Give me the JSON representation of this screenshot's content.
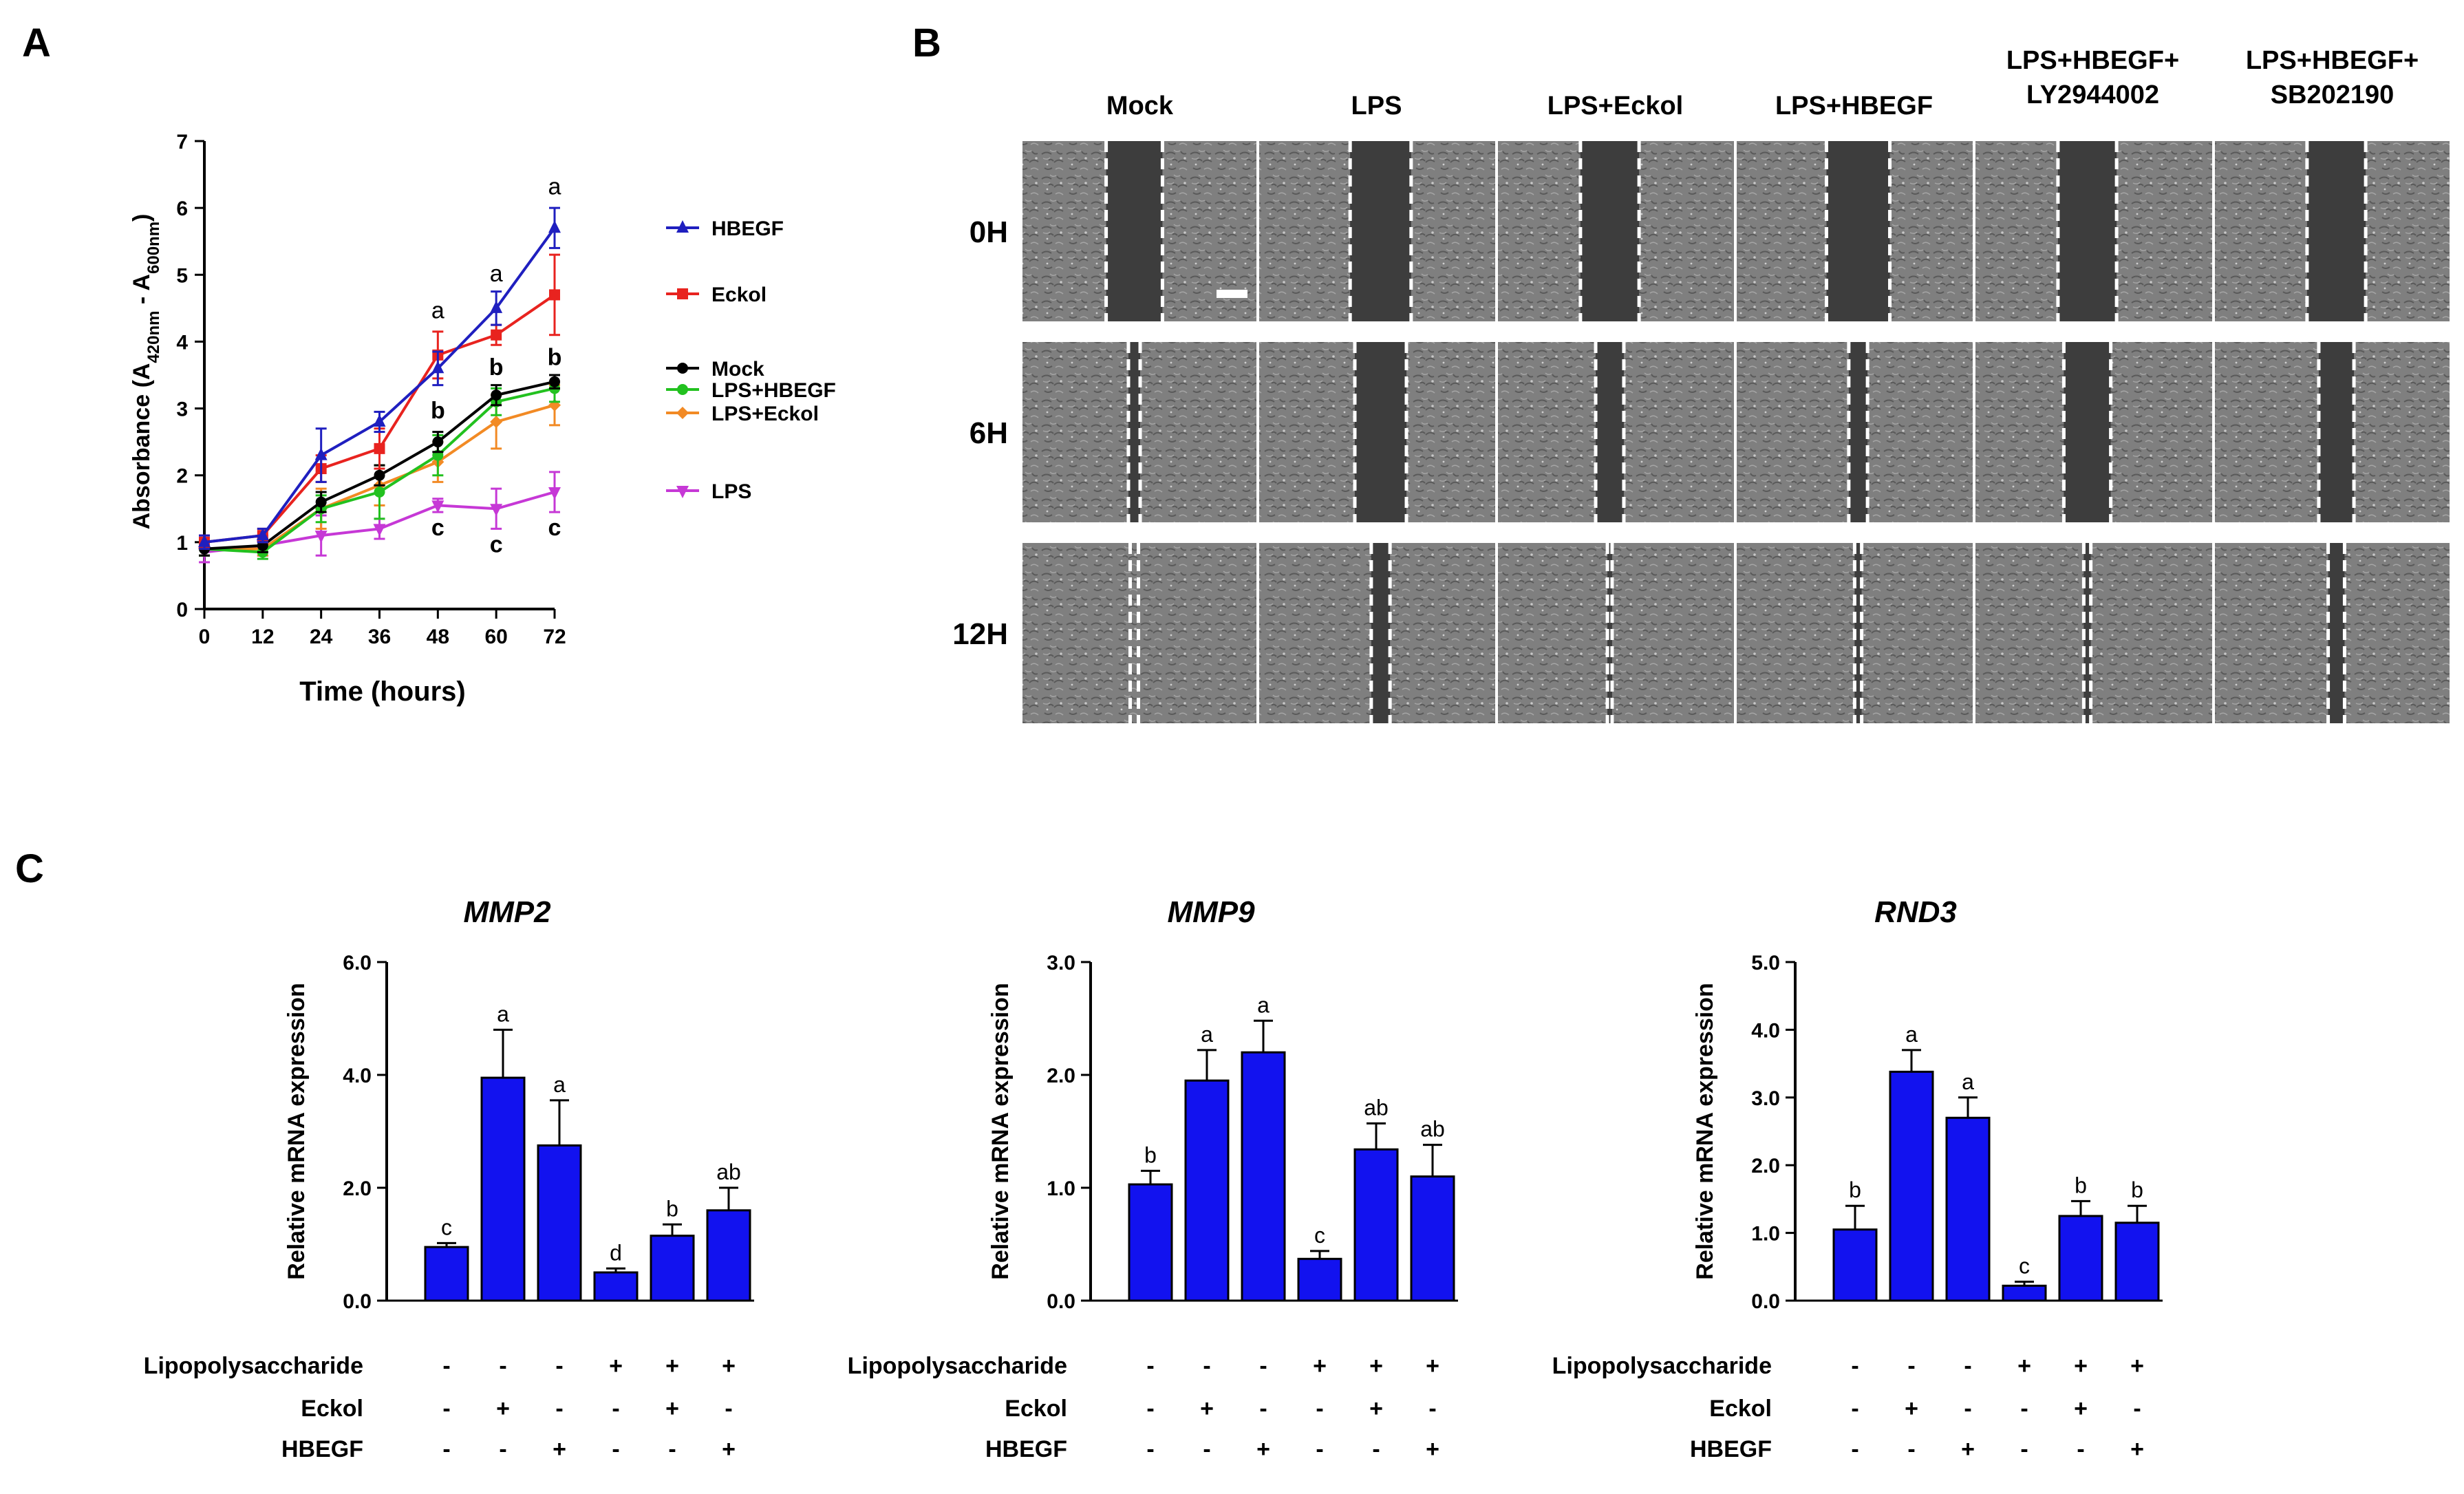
{
  "panel_labels": [
    "A",
    "B",
    "C"
  ],
  "colors": {
    "HBEGF": "#1f1fbf",
    "Eckol": "#e8231f",
    "Mock": "#000000",
    "LPS+HBEGF": "#22c11f",
    "LPS+Eckol": "#f28a24",
    "LPS": "#c638d6",
    "bar": "#1212ef"
  },
  "chart_data": [
    {
      "type": "line",
      "title": "A",
      "xlabel": "Time (hours)",
      "ylabel": "Absorbance (A420nm - A600nm)",
      "ylabel_parts": {
        "main": "Absorbance (A",
        "sub1": "420nm",
        "mid": " - A",
        "sub2": "600nm",
        "end": ")"
      },
      "x": [
        0,
        12,
        24,
        36,
        48,
        60,
        72
      ],
      "xlim": [
        0,
        72
      ],
      "ylim": [
        0,
        7
      ],
      "xticks": [
        "0",
        "12",
        "24",
        "36",
        "48",
        "60",
        "72"
      ],
      "yticks": [
        "0",
        "1",
        "2",
        "3",
        "4",
        "5",
        "6",
        "7"
      ],
      "series": [
        {
          "name": "HBEGF",
          "color": "#1f1fbf",
          "marker": "triangle",
          "values": [
            1.0,
            1.1,
            2.3,
            2.8,
            3.6,
            4.5,
            5.7
          ],
          "errors": [
            0.1,
            0.1,
            0.4,
            0.15,
            0.25,
            0.25,
            0.3
          ]
        },
        {
          "name": "Eckol",
          "color": "#e8231f",
          "marker": "square",
          "values": [
            1.0,
            1.1,
            2.1,
            2.4,
            3.8,
            4.1,
            4.7
          ],
          "errors": [
            0.1,
            0.1,
            0.2,
            0.3,
            0.35,
            0.15,
            0.6
          ]
        },
        {
          "name": "Mock",
          "color": "#000000",
          "marker": "circle",
          "values": [
            0.9,
            0.95,
            1.6,
            2.0,
            2.5,
            3.2,
            3.4
          ],
          "errors": [
            0.1,
            0.1,
            0.15,
            0.15,
            0.15,
            0.15,
            0.1
          ]
        },
        {
          "name": "LPS+HBEGF",
          "color": "#22c11f",
          "marker": "circle",
          "values": [
            0.9,
            0.85,
            1.5,
            1.75,
            2.3,
            3.1,
            3.3
          ],
          "errors": [
            0.1,
            0.1,
            0.2,
            0.4,
            0.3,
            0.2,
            0.2
          ]
        },
        {
          "name": "LPS+Eckol",
          "color": "#f28a24",
          "marker": "diamond",
          "values": [
            0.9,
            0.9,
            1.5,
            1.85,
            2.2,
            2.8,
            3.05
          ],
          "errors": [
            0.1,
            0.1,
            0.3,
            0.3,
            0.3,
            0.4,
            0.3
          ]
        },
        {
          "name": "LPS",
          "color": "#c638d6",
          "marker": "triangle-down",
          "values": [
            0.85,
            0.95,
            1.1,
            1.2,
            1.55,
            1.5,
            1.75
          ],
          "errors": [
            0.15,
            0.15,
            0.3,
            0.15,
            0.1,
            0.3,
            0.3
          ]
        }
      ],
      "annotations": [
        {
          "text": "a",
          "x": 48,
          "y": 4.35
        },
        {
          "text": "a",
          "x": 60,
          "y": 4.9
        },
        {
          "text": "a",
          "x": 72,
          "y": 6.2
        },
        {
          "text": "b",
          "x": 48,
          "y": 2.85
        },
        {
          "text": "b",
          "x": 60,
          "y": 3.5
        },
        {
          "text": "b",
          "x": 72,
          "y": 3.65
        },
        {
          "text": "c",
          "x": 48,
          "y": 1.1
        },
        {
          "text": "c",
          "x": 60,
          "y": 0.85
        },
        {
          "text": "c",
          "x": 72,
          "y": 1.1
        }
      ],
      "legend_groups": [
        [
          "HBEGF"
        ],
        [
          "Eckol"
        ],
        [
          "Mock",
          "LPS+HBEGF",
          "LPS+Eckol"
        ],
        [
          "LPS"
        ]
      ]
    },
    {
      "type": "bar",
      "title": "MMP2",
      "ylabel": "Relative mRNA expression",
      "ylim": [
        0,
        6
      ],
      "yticks": [
        "0.0",
        "2.0",
        "4.0",
        "6.0"
      ],
      "values": [
        0.95,
        3.95,
        2.75,
        0.5,
        1.15,
        1.6
      ],
      "errors": [
        0.07,
        0.85,
        0.8,
        0.07,
        0.2,
        0.4
      ],
      "letters": [
        "c",
        "a",
        "a",
        "d",
        "b",
        "ab"
      ]
    },
    {
      "type": "bar",
      "title": "MMP9",
      "ylabel": "Relative mRNA expression",
      "ylim": [
        0,
        3
      ],
      "yticks": [
        "0.0",
        "1.0",
        "2.0",
        "3.0"
      ],
      "values": [
        1.03,
        1.95,
        2.2,
        0.37,
        1.34,
        1.1
      ],
      "errors": [
        0.12,
        0.27,
        0.28,
        0.07,
        0.23,
        0.28
      ],
      "letters": [
        "b",
        "a",
        "a",
        "c",
        "ab",
        "ab"
      ]
    },
    {
      "type": "bar",
      "title": "RND3",
      "ylabel": "Relative mRNA expression",
      "ylim": [
        0,
        5
      ],
      "yticks": [
        "0.0",
        "1.0",
        "2.0",
        "3.0",
        "4.0",
        "5.0"
      ],
      "values": [
        1.05,
        3.38,
        2.7,
        0.22,
        1.25,
        1.15
      ],
      "errors": [
        0.35,
        0.32,
        0.3,
        0.06,
        0.22,
        0.25
      ],
      "letters": [
        "b",
        "a",
        "a",
        "c",
        "b",
        "b"
      ]
    }
  ],
  "treatments": {
    "rows": [
      "Lipopolysaccharide",
      "Eckol",
      "HBEGF"
    ],
    "signs": [
      [
        "-",
        "-",
        "-",
        "+",
        "+",
        "+"
      ],
      [
        "-",
        "+",
        "-",
        "-",
        "+",
        "-"
      ],
      [
        "-",
        "-",
        "+",
        "-",
        "-",
        "+"
      ]
    ]
  },
  "panel_b": {
    "columns": [
      {
        "line1": "Mock",
        "line2": ""
      },
      {
        "line1": "LPS",
        "line2": ""
      },
      {
        "line1": "LPS+Eckol",
        "line2": ""
      },
      {
        "line1": "LPS+HBEGF",
        "line2": ""
      },
      {
        "line1": "LPS+HBEGF+",
        "line2": "LY2944002"
      },
      {
        "line1": "LPS+HBEGF+",
        "line2": "SB202190"
      }
    ],
    "rows": [
      "0H",
      "6H",
      "12H"
    ],
    "gap_fraction": [
      [
        0.24,
        0.26,
        0.25,
        0.27,
        0.25,
        0.25
      ],
      [
        0.05,
        0.22,
        0.12,
        0.08,
        0.2,
        0.15
      ],
      [
        0.0,
        0.08,
        0.02,
        0.03,
        0.03,
        0.07
      ]
    ]
  }
}
